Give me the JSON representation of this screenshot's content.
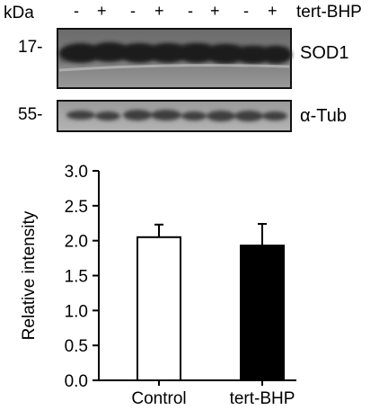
{
  "blot": {
    "unit_label": "kDa",
    "lane_signs": [
      "-",
      "+",
      "-",
      "+",
      "-",
      "+",
      "-",
      "+"
    ],
    "treatment_label": "tert-BHP",
    "markers": [
      {
        "label": "17-",
        "band": "SOD1"
      },
      {
        "label": "55-",
        "band": "α-Tub"
      }
    ]
  },
  "chart_data": {
    "type": "bar",
    "categories": [
      "Control",
      "tert-BHP"
    ],
    "values": [
      2.05,
      1.93
    ],
    "errors": [
      0.18,
      0.31
    ],
    "bar_colors": [
      "#ffffff",
      "#000000"
    ],
    "ylabel": "Relative intensity",
    "xlabel": "",
    "ylim": [
      0,
      3.0
    ],
    "yticks": [
      "0.0",
      "0.5",
      "1.0",
      "1.5",
      "2.0",
      "2.5",
      "3.0"
    ],
    "grid": false,
    "legend": "none"
  }
}
